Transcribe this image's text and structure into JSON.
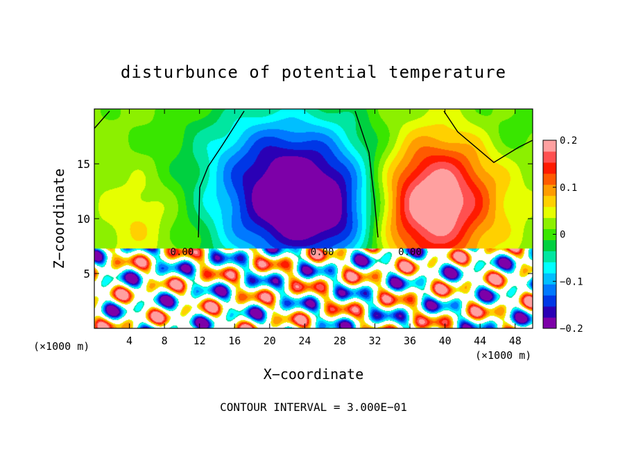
{
  "chart_data": {
    "type": "heatmap",
    "title": "disturbunce of potential temperature",
    "xlabel": "X−coordinate",
    "ylabel": "Z−coordinate",
    "x_unit_left": "(×1000 m)",
    "x_unit_right": "(×1000 m)",
    "footer": "CONTOUR INTERVAL = 3.000E−01",
    "xlim": [
      0,
      50
    ],
    "ylim": [
      0,
      20
    ],
    "x_ticks": [
      4,
      8,
      12,
      16,
      20,
      24,
      28,
      32,
      36,
      40,
      44,
      48
    ],
    "y_ticks": [
      5,
      10,
      15
    ],
    "colorbar": {
      "range": [
        -0.2,
        0.2
      ],
      "tick_values": [
        0.2,
        0.1,
        0,
        -0.1,
        -0.2
      ],
      "tick_labels": [
        "0.2",
        "0.1",
        "0",
        "−0.1",
        "−0.2"
      ],
      "colors": [
        "#7d00a8",
        "#2a00b5",
        "#0037e6",
        "#0079ff",
        "#00bfff",
        "#00ffff",
        "#00e6a0",
        "#00d040",
        "#39e600",
        "#8cf000",
        "#e6ff00",
        "#ffd000",
        "#ff9c00",
        "#ff5a00",
        "#ff1a00",
        "#ff5050",
        "#ffa0a0"
      ]
    },
    "contour_labels": [
      {
        "x": 10,
        "y": 7.0,
        "text": "0.00"
      },
      {
        "x": 26,
        "y": 7.0,
        "text": "0.00"
      },
      {
        "x": 36,
        "y": 7.0,
        "text": "0.00"
      }
    ],
    "upper_field": {
      "background": 0.02,
      "features": [
        {
          "x": 21,
          "z": 11,
          "sx": 5.5,
          "sz": 4.5,
          "amp": -0.19
        },
        {
          "x": 28,
          "z": 10.5,
          "sx": 3.8,
          "sz": 3.5,
          "amp": -0.12
        },
        {
          "x": 22,
          "z": 16.5,
          "sx": 8,
          "sz": 3.5,
          "amp": -0.08
        },
        {
          "x": 38,
          "z": 11,
          "sx": 4.5,
          "sz": 4,
          "amp": 0.16
        },
        {
          "x": 41,
          "z": 13.5,
          "sx": 5,
          "sz": 4,
          "amp": 0.06
        },
        {
          "x": 5,
          "z": 10,
          "sx": 3,
          "sz": 3,
          "amp": 0.04
        },
        {
          "x": 47,
          "z": 18,
          "sx": 4,
          "sz": 3,
          "amp": -0.03
        }
      ]
    },
    "interface_height": 7.3
  }
}
